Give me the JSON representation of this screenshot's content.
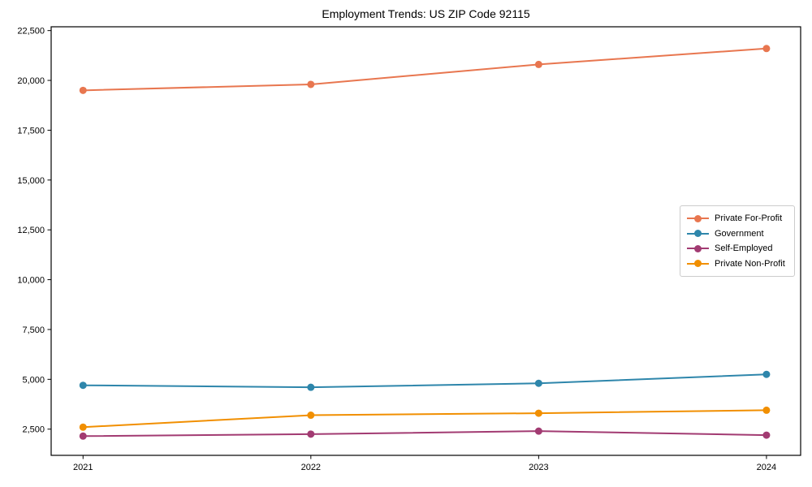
{
  "window": {
    "background": "#ffffff",
    "text_color": "#000000",
    "axis_color": "#000000",
    "legend_border_color": "#cccccc"
  },
  "chart_data": {
    "type": "line",
    "title": "Employment Trends: US ZIP Code 92115",
    "xlabel": "",
    "ylabel": "",
    "x": [
      2021,
      2022,
      2023,
      2024
    ],
    "x_ticks": [
      {
        "value": 2021,
        "label": "2021"
      },
      {
        "value": 2022,
        "label": "2022"
      },
      {
        "value": 2023,
        "label": "2023"
      },
      {
        "value": 2024,
        "label": "2024"
      }
    ],
    "y_ticks": [
      {
        "value": 2500,
        "label": "2,500"
      },
      {
        "value": 5000,
        "label": "5,000"
      },
      {
        "value": 7500,
        "label": "7,500"
      },
      {
        "value": 10000,
        "label": "10,000"
      },
      {
        "value": 12500,
        "label": "12,500"
      },
      {
        "value": 15000,
        "label": "15,000"
      },
      {
        "value": 17500,
        "label": "17,500"
      },
      {
        "value": 20000,
        "label": "20,000"
      },
      {
        "value": 22500,
        "label": "22,500"
      }
    ],
    "xlim": [
      2020.86,
      2024.15
    ],
    "ylim": [
      1185,
      22690
    ],
    "grid": false,
    "legend_position": "center right",
    "marker": "circle",
    "series": [
      {
        "name": "Private For-Profit",
        "color": "#E8764F",
        "values": [
          19500,
          19800,
          20800,
          21600
        ]
      },
      {
        "name": "Government",
        "color": "#2E86AB",
        "values": [
          4700,
          4600,
          4800,
          5250
        ]
      },
      {
        "name": "Self-Employed",
        "color": "#A23B72",
        "values": [
          2150,
          2250,
          2400,
          2200
        ]
      },
      {
        "name": "Private Non-Profit",
        "color": "#F18F01",
        "values": [
          2600,
          3200,
          3300,
          3450
        ]
      }
    ]
  }
}
